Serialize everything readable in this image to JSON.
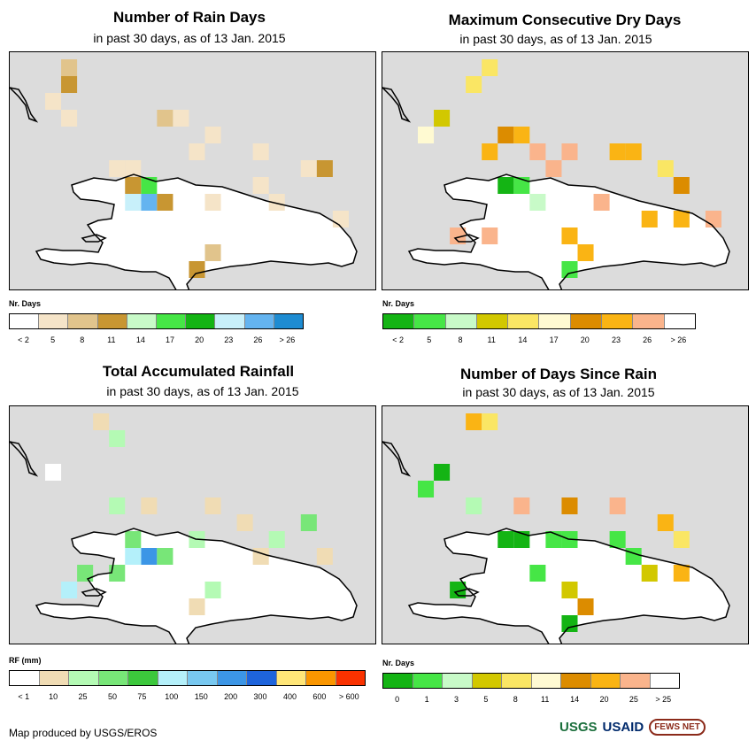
{
  "panels": [
    {
      "title": "Number of Rain Days",
      "subtitle": "in past 30 days, as of 13 Jan. 2015",
      "legend_title": "Nr. Days",
      "legend_colors": [
        "#ffffff",
        "#f5e4c8",
        "#e1c48c",
        "#c89632",
        "#c8fac8",
        "#46e646",
        "#14b414",
        "#c8f0fa",
        "#64b4f0",
        "#1e8cd2"
      ],
      "legend_labels": [
        "< 2",
        "5",
        "8",
        "11",
        "14",
        "17",
        "20",
        "23",
        "26",
        "> 26"
      ]
    },
    {
      "title": "Maximum Consecutive Dry Days",
      "subtitle": "in past 30 days, as of 13 Jan. 2015",
      "legend_title": "Nr. Days",
      "legend_colors": [
        "#14b414",
        "#46e646",
        "#c8fac8",
        "#d2c800",
        "#fae664",
        "#fffad2",
        "#dc8c00",
        "#fab414",
        "#fab48c",
        "#ffffff"
      ],
      "legend_labels": [
        "< 2",
        "5",
        "8",
        "11",
        "14",
        "17",
        "20",
        "23",
        "26",
        "> 26"
      ]
    },
    {
      "title": "Total Accumulated Rainfall",
      "subtitle": "in past 30 days, as of 13 Jan. 2015",
      "legend_title": "RF (mm)",
      "legend_colors": [
        "#ffffff",
        "#f0dcb4",
        "#b4fab4",
        "#78e678",
        "#3cc83c",
        "#b4f0fa",
        "#78c8f0",
        "#3c96e6",
        "#1e64dc",
        "#ffe678",
        "#fa9600",
        "#fa3200"
      ],
      "legend_labels": [
        "< 1",
        "10",
        "25",
        "50",
        "75",
        "100",
        "150",
        "200",
        "300",
        "400",
        "600",
        "> 600"
      ]
    },
    {
      "title": "Number of Days Since Rain",
      "subtitle": "in past 30 days, as of 13 Jan. 2015",
      "legend_title": "Nr. Days",
      "legend_colors": [
        "#14b414",
        "#46e646",
        "#c8fac8",
        "#d2c800",
        "#fae664",
        "#fffad2",
        "#dc8c00",
        "#fab414",
        "#fab48c",
        "#ffffff"
      ],
      "legend_labels": [
        "0",
        "1",
        "3",
        "5",
        "8",
        "11",
        "14",
        "20",
        "25",
        "> 25"
      ]
    }
  ],
  "credit": "Map produced by USGS/EROS",
  "logos": [
    "USGS",
    "USAID",
    "FEWS NET"
  ]
}
